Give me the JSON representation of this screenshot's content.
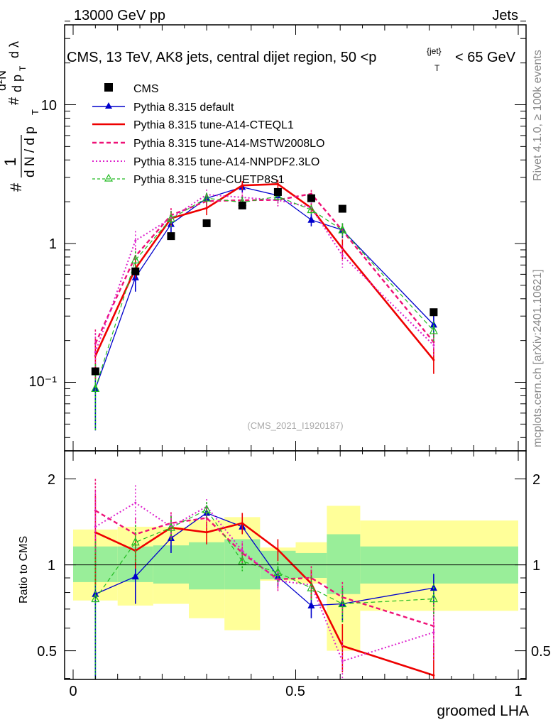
{
  "header": {
    "left": "13000 GeV pp",
    "right": "Jets"
  },
  "plot_title": "CMS, 13 TeV, AK8 jets, central dijet region, 50 <p",
  "plot_title_sub": "T",
  "plot_title_sup": "{jet}",
  "plot_title_tail": "< 65 GeV",
  "side_labels": {
    "rivet": "Rivet 4.1.0, ≥ 100k events",
    "mcplots": "mcplots.cern.ch [arXiv:2401.10621]"
  },
  "watermark": "(CMS_2021_I1920187)",
  "yaxis_main_label": {
    "one": "1",
    "frac_den": "d N / d p",
    "frac_den_sub": "T",
    "hash1": "#",
    "hash2": "#",
    "num": "d²N",
    "den2": "d p",
    "den2_sub": "T",
    "dl": "d λ"
  },
  "ratio_ylabel": "Ratio to CMS",
  "xlabel": "groomed LHA",
  "main_ticks": {
    "y": [
      "10⁻¹",
      "1",
      "10"
    ]
  },
  "ratio_ticks": {
    "y_left": [
      "2",
      "1",
      "0.5"
    ],
    "y_right": [
      "2",
      "1",
      "0.5"
    ]
  },
  "x_ticks": [
    "0",
    "0.5",
    "1"
  ],
  "legend": [
    "CMS",
    "Pythia 8.315 default",
    "Pythia 8.315 tune-A14-CTEQL1",
    "Pythia 8.315 tune-A14-MSTW2008LO",
    "Pythia 8.315 tune-A14-NNPDF2.3LO",
    "Pythia 8.315 tune-CUETP8S1"
  ],
  "colors": {
    "cms": "#000000",
    "default": "#0000cc",
    "cteql1": "#ee0000",
    "mstw": "#ee1177",
    "nnpdf": "#dd22cc",
    "cuetp": "#22bb22",
    "band_inner": "#99ee99",
    "band_outer": "#ffff99"
  },
  "chart_data": {
    "type": "line",
    "xlim": [
      0,
      1
    ],
    "main_ylim": [
      0.035,
      40
    ],
    "main_yscale": "log",
    "ratio_ylim": [
      0.4,
      2.3
    ],
    "ratio_yscale": "log",
    "x": [
      0.05,
      0.14,
      0.22,
      0.3,
      0.38,
      0.46,
      0.535,
      0.605,
      0.81
    ],
    "cms": [
      0.12,
      0.63,
      1.13,
      1.4,
      1.88,
      2.35,
      2.12,
      1.78,
      0.32
    ],
    "bands": {
      "edges": [
        0,
        0.1,
        0.18,
        0.26,
        0.34,
        0.42,
        0.5,
        0.57,
        0.645,
        1.0
      ],
      "inner_lo": [
        0.87,
        0.87,
        0.86,
        0.82,
        0.82,
        0.89,
        0.9,
        0.79,
        0.86
      ],
      "inner_hi": [
        1.16,
        1.16,
        1.17,
        1.2,
        1.23,
        1.12,
        1.1,
        1.28,
        1.16
      ],
      "outer_lo": [
        0.75,
        0.72,
        0.73,
        0.65,
        0.59,
        0.88,
        0.86,
        0.5,
        0.69
      ],
      "outer_hi": [
        1.33,
        1.36,
        1.36,
        1.44,
        1.47,
        1.15,
        1.2,
        1.61,
        1.43
      ]
    },
    "series": [
      {
        "name": "Pythia 8.315 default",
        "key": "default",
        "style": "solid",
        "marker": "triangle-filled",
        "values": [
          0.09,
          0.57,
          1.38,
          2.12,
          2.55,
          2.22,
          1.48,
          1.25,
          0.26
        ],
        "errors": [
          0.045,
          0.12,
          0.2,
          0.2,
          0.2,
          0.2,
          0.15,
          0.15,
          0.05
        ],
        "ratio": [
          0.79,
          0.91,
          1.24,
          1.52,
          1.36,
          0.91,
          0.72,
          0.73,
          0.83
        ],
        "ratio_err": [
          0.45,
          0.18,
          0.14,
          0.08,
          0.07,
          0.07,
          0.07,
          0.1,
          0.1
        ]
      },
      {
        "name": "Pythia 8.315 tune-A14-CTEQL1",
        "key": "cteql1",
        "style": "solid",
        "marker": "none",
        "values": [
          0.155,
          0.66,
          1.52,
          1.8,
          2.62,
          2.68,
          1.8,
          0.92,
          0.145
        ],
        "errors": [
          0.05,
          0.1,
          0.2,
          0.2,
          0.2,
          0.2,
          0.15,
          0.15,
          0.03
        ],
        "ratio": [
          1.3,
          1.12,
          1.35,
          1.3,
          1.4,
          1.13,
          0.86,
          0.52,
          0.41
        ],
        "ratio_err": [
          0.45,
          0.15,
          0.13,
          0.12,
          0.12,
          0.1,
          0.1,
          0.1,
          0.12
        ]
      },
      {
        "name": "Pythia 8.315 tune-A14-MSTW2008LO",
        "key": "mstw",
        "style": "dashed",
        "marker": "none",
        "values": [
          0.19,
          0.81,
          1.6,
          2.02,
          2.05,
          2.06,
          2.28,
          1.24,
          0.195
        ],
        "errors": [
          0.05,
          0.12,
          0.2,
          0.2,
          0.2,
          0.2,
          0.15,
          0.15,
          0.03
        ],
        "ratio": [
          1.55,
          1.28,
          1.4,
          1.46,
          1.1,
          0.89,
          0.9,
          0.77,
          0.61
        ],
        "ratio_err": [
          0.45,
          0.18,
          0.13,
          0.12,
          0.09,
          0.08,
          0.09,
          0.1,
          0.12
        ]
      },
      {
        "name": "Pythia 8.315 tune-A14-NNPDF2.3LO",
        "key": "nnpdf",
        "style": "dotted",
        "marker": "none",
        "values": [
          0.165,
          1.05,
          1.52,
          2.25,
          2.15,
          2.05,
          1.82,
          0.82,
          0.185
        ],
        "errors": [
          0.06,
          0.18,
          0.2,
          0.2,
          0.2,
          0.2,
          0.15,
          0.15,
          0.03
        ],
        "ratio": [
          1.36,
          1.65,
          1.36,
          1.6,
          1.12,
          0.88,
          0.85,
          0.46,
          0.58
        ],
        "ratio_err": [
          0.45,
          0.25,
          0.14,
          0.1,
          0.09,
          0.07,
          0.08,
          0.08,
          0.12
        ]
      },
      {
        "name": "Pythia 8.315 tune-CUETP8S1",
        "key": "cuetp",
        "style": "dashed",
        "marker": "triangle-open",
        "values": [
          0.09,
          0.76,
          1.51,
          2.12,
          1.98,
          2.18,
          1.75,
          1.25,
          0.235
        ],
        "errors": [
          0.045,
          0.12,
          0.2,
          0.2,
          0.2,
          0.2,
          0.15,
          0.15,
          0.04
        ],
        "ratio": [
          0.76,
          1.2,
          1.35,
          1.56,
          1.03,
          0.94,
          0.83,
          0.73,
          0.76
        ],
        "ratio_err": [
          0.45,
          0.18,
          0.13,
          0.1,
          0.08,
          0.08,
          0.08,
          0.1,
          0.1
        ]
      }
    ]
  }
}
